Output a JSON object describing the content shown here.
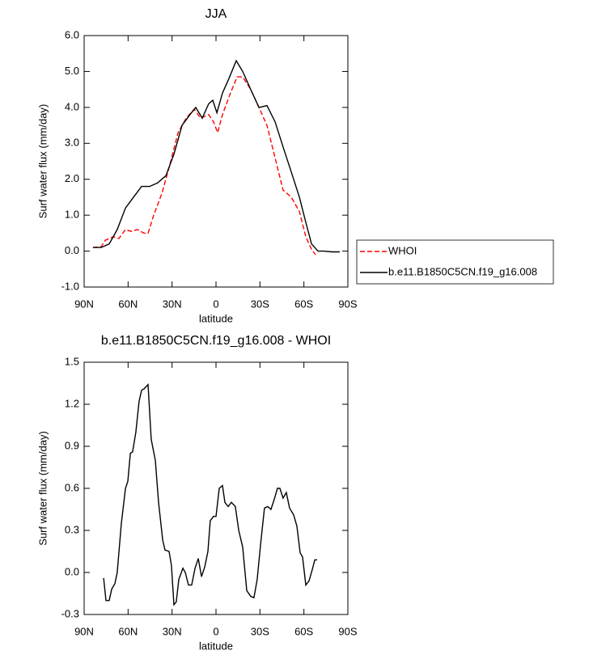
{
  "chart_data": [
    {
      "type": "line",
      "title": "JJA",
      "x_label": "latitude",
      "y_label": "Surf water flux (mm/day)",
      "xlim": [
        90,
        -90
      ],
      "xticks": [
        {
          "value": 90,
          "label": "90N"
        },
        {
          "value": 60,
          "label": "60N"
        },
        {
          "value": 30,
          "label": "30N"
        },
        0,
        {
          "value": -30,
          "label": "30S"
        },
        {
          "value": -60,
          "label": "60S"
        },
        {
          "value": -90,
          "label": "90S"
        }
      ],
      "ylim": [
        -1,
        6
      ],
      "yticks": [
        {
          "value": -1,
          "label": "-1.0"
        },
        {
          "value": 0,
          "label": "0.0"
        },
        {
          "value": 1,
          "label": "1.0"
        },
        {
          "value": 2,
          "label": "2.0"
        },
        {
          "value": 3,
          "label": "3.0"
        },
        {
          "value": 4,
          "label": "4.0"
        },
        {
          "value": 5,
          "label": "5.0"
        },
        {
          "value": 6,
          "label": "6.0"
        }
      ],
      "legend": "right",
      "series": [
        {
          "name": "WHOI",
          "color": "#ff0000",
          "dash": true,
          "x": [
            84,
            78.4,
            75.6,
            70.1,
            66.3,
            61.8,
            58.0,
            53.6,
            49.1,
            46.4,
            42.5,
            37.0,
            31.5,
            25.9,
            20.4,
            14.9,
            10.5,
            5.0,
            1.7,
            -1.1,
            -4.4,
            -9.9,
            -14.4,
            -18.2,
            -23.7,
            -29.3,
            -34.8,
            -40.3,
            -45.8,
            -51.4,
            -56.9,
            -61.3,
            -65.2,
            -67.9
          ],
          "values": [
            0.1,
            0.12,
            0.3,
            0.4,
            0.35,
            0.6,
            0.55,
            0.6,
            0.5,
            0.5,
            1.0,
            1.6,
            2.4,
            3.3,
            3.7,
            3.95,
            3.7,
            3.8,
            3.6,
            3.3,
            3.8,
            4.4,
            4.85,
            4.85,
            4.5,
            4.0,
            3.5,
            2.6,
            1.7,
            1.5,
            1.1,
            0.4,
            0.05,
            -0.1
          ]
        },
        {
          "name": "b.e11.B1850C5CN.f19_g16.008",
          "color": "#000000",
          "dash": false,
          "x": [
            84,
            78.4,
            72.9,
            67.4,
            61.8,
            56.3,
            50.8,
            45.3,
            39.8,
            34.2,
            28.7,
            23.2,
            17.7,
            13.8,
            9.4,
            5.0,
            2.2,
            -0.6,
            -4.4,
            -8.8,
            -13.8,
            -18.2,
            -23.7,
            -29.3,
            -34.8,
            -40.3,
            -45.8,
            -51.4,
            -56.9,
            -61.3,
            -65.2,
            -69.6,
            -73.4,
            -79,
            -84.5
          ],
          "values": [
            0.1,
            0.1,
            0.2,
            0.6,
            1.2,
            1.5,
            1.8,
            1.8,
            1.9,
            2.1,
            2.7,
            3.5,
            3.8,
            4.0,
            3.7,
            4.1,
            4.2,
            3.85,
            4.4,
            4.8,
            5.3,
            5.0,
            4.5,
            4.0,
            4.05,
            3.6,
            2.9,
            2.2,
            1.5,
            0.8,
            0.2,
            0.0,
            0.0,
            -0.02,
            -0.02
          ]
        }
      ]
    },
    {
      "type": "line",
      "title": "b.e11.B1850C5CN.f19_g16.008 - WHOI",
      "x_label": "latitude",
      "y_label": "Surf water flux (mm/day)",
      "xlim": [
        90,
        -90
      ],
      "xticks": [
        {
          "value": 90,
          "label": "90N"
        },
        {
          "value": 60,
          "label": "60N"
        },
        {
          "value": 30,
          "label": "30N"
        },
        0,
        {
          "value": -30,
          "label": "30S"
        },
        {
          "value": -60,
          "label": "60S"
        },
        {
          "value": -90,
          "label": "90S"
        }
      ],
      "ylim": [
        -0.3,
        1.5
      ],
      "yticks": [
        -0.3,
        {
          "value": 0,
          "label": "0.0"
        },
        0.3,
        0.6,
        0.9,
        1.2,
        1.5
      ],
      "series": [
        {
          "color": "#000000",
          "dash": false,
          "x": [
            76.7,
            75.1,
            72.9,
            71.2,
            69.0,
            67.4,
            64.6,
            61.8,
            60.2,
            58.5,
            56.9,
            54.7,
            52.5,
            50.8,
            49.1,
            46.4,
            44.2,
            41.4,
            39.2,
            36.4,
            34.8,
            32.0,
            30.4,
            28.7,
            27.1,
            25.4,
            22.6,
            21.0,
            18.8,
            16.6,
            14.3,
            12.1,
            9.9,
            7.7,
            5.5,
            3.9,
            1.7,
            0.0,
            -2.2,
            -4.4,
            -6.1,
            -8.3,
            -10.5,
            -13.2,
            -15.5,
            -18.2,
            -21.0,
            -23.7,
            -25.9,
            -28.1,
            -30.4,
            -33.1,
            -35.3,
            -37.5,
            -39.7,
            -41.9,
            -43.6,
            -45.8,
            -48.0,
            -50.2,
            -53.0,
            -55.2,
            -57.4,
            -59.1,
            -61.3,
            -63.5,
            -65.7,
            -67.4,
            -69.0
          ],
          "values": [
            -0.04,
            -0.2,
            -0.2,
            -0.12,
            -0.08,
            0.0,
            0.35,
            0.6,
            0.65,
            0.85,
            0.86,
            1.0,
            1.22,
            1.3,
            1.31,
            1.34,
            0.95,
            0.8,
            0.5,
            0.23,
            0.16,
            0.15,
            0.05,
            -0.23,
            -0.21,
            -0.05,
            0.03,
            0.0,
            -0.09,
            -0.09,
            0.03,
            0.1,
            -0.03,
            0.04,
            0.15,
            0.37,
            0.4,
            0.4,
            0.6,
            0.62,
            0.5,
            0.47,
            0.5,
            0.47,
            0.3,
            0.18,
            -0.13,
            -0.17,
            -0.18,
            -0.05,
            0.2,
            0.46,
            0.47,
            0.45,
            0.52,
            0.6,
            0.6,
            0.53,
            0.57,
            0.46,
            0.41,
            0.33,
            0.14,
            0.11,
            -0.09,
            -0.06,
            0.02,
            0.09,
            0.09
          ]
        }
      ]
    }
  ]
}
